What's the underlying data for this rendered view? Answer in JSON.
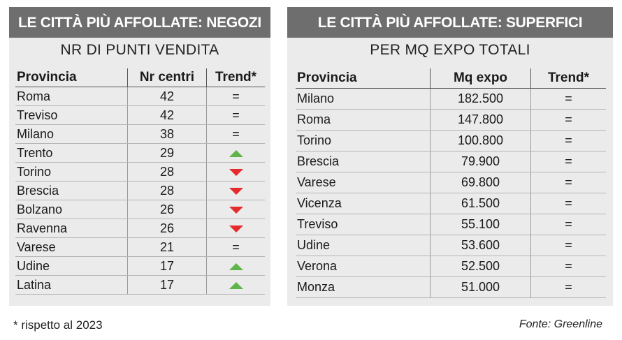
{
  "left": {
    "title": "LE CITTÀ PIÙ AFFOLLATE: NEGOZI",
    "subtitle": "NR DI PUNTI VENDITA",
    "columns": [
      "Provincia",
      "Nr centri",
      "Trend*"
    ],
    "rows": [
      {
        "provincia": "Roma",
        "value": "42",
        "trend": "="
      },
      {
        "provincia": "Treviso",
        "value": "42",
        "trend": "="
      },
      {
        "provincia": "Milano",
        "value": "38",
        "trend": "="
      },
      {
        "provincia": "Trento",
        "value": "29",
        "trend": "up"
      },
      {
        "provincia": "Torino",
        "value": "28",
        "trend": "down"
      },
      {
        "provincia": "Brescia",
        "value": "28",
        "trend": "down"
      },
      {
        "provincia": "Bolzano",
        "value": "26",
        "trend": "down"
      },
      {
        "provincia": "Ravenna",
        "value": "26",
        "trend": "down"
      },
      {
        "provincia": "Varese",
        "value": "21",
        "trend": "="
      },
      {
        "provincia": "Udine",
        "value": "17",
        "trend": "up"
      },
      {
        "provincia": "Latina",
        "value": "17",
        "trend": "up"
      }
    ]
  },
  "right": {
    "title": "LE CITTÀ PIÙ AFFOLLATE: SUPERFICI",
    "subtitle": "PER MQ EXPO TOTALI",
    "columns": [
      "Provincia",
      "Mq expo",
      "Trend*"
    ],
    "rows": [
      {
        "provincia": "Milano",
        "value": "182.500",
        "trend": "="
      },
      {
        "provincia": "Roma",
        "value": "147.800",
        "trend": "="
      },
      {
        "provincia": "Torino",
        "value": "100.800",
        "trend": "="
      },
      {
        "provincia": "Brescia",
        "value": "79.900",
        "trend": "="
      },
      {
        "provincia": "Varese",
        "value": "69.800",
        "trend": "="
      },
      {
        "provincia": "Vicenza",
        "value": "61.500",
        "trend": "="
      },
      {
        "provincia": "Treviso",
        "value": "55.100",
        "trend": "="
      },
      {
        "provincia": "Udine",
        "value": "53.600",
        "trend": "="
      },
      {
        "provincia": "Verona",
        "value": "52.500",
        "trend": "="
      },
      {
        "provincia": "Monza",
        "value": "51.000",
        "trend": "="
      }
    ]
  },
  "footnote": "* rispetto al 2023",
  "source": "Fonte: Greenline",
  "colors": {
    "header_bg": "#6e6e6e",
    "panel_bg": "#ebebeb",
    "trend_up": "#5fb54a",
    "trend_down": "#e52b2b"
  }
}
